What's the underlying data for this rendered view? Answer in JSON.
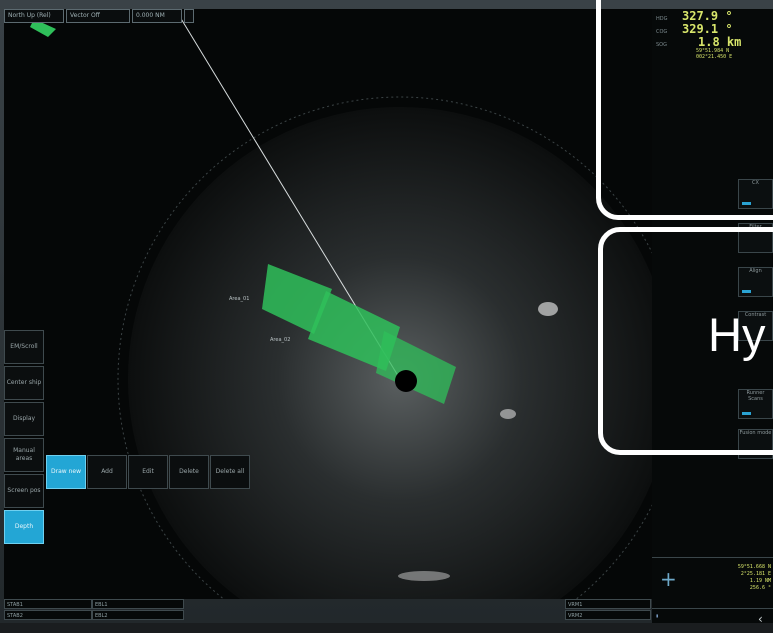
{
  "topbar": {
    "mode": "North Up (Rel)",
    "vector": "Vector Off",
    "range": "0.000 NM"
  },
  "nav": {
    "rows": [
      {
        "label": "HDG",
        "value": "327.9 °"
      },
      {
        "label": "COG",
        "value": "329.1 °"
      },
      {
        "label": "SOG",
        "value": "1.8 km"
      }
    ],
    "lat": "59°51.984 N",
    "lon": "002°21.450 E"
  },
  "left_menu": [
    {
      "label": "EM/Scroll"
    },
    {
      "label": "Center ship"
    },
    {
      "label": "Display"
    },
    {
      "label": "Manual areas"
    },
    {
      "label": "Screen pos"
    },
    {
      "label": "Depth"
    }
  ],
  "submenu": [
    {
      "label": "Draw new"
    },
    {
      "label": "Add"
    },
    {
      "label": "Edit"
    },
    {
      "label": "Delete"
    },
    {
      "label": "Delete all"
    }
  ],
  "status": {
    "row1": [
      "STAB1",
      "EBL1"
    ],
    "row2": [
      "STAB2",
      "EBL2"
    ],
    "vrm1": "VRM1",
    "vrm2": "VRM2"
  },
  "cursor": {
    "lines": [
      "59°51.668 N",
      "2°25.181 E",
      "1.19 NM",
      "256.6 °"
    ]
  },
  "areas": {
    "label1": "Area_01",
    "label2": "Area_02"
  },
  "right_controls": [
    {
      "label": "CX"
    },
    {
      "label": "Filter"
    },
    {
      "label": "Align"
    },
    {
      "label": "Contrast"
    },
    {
      "label": "Runner Scans"
    },
    {
      "label": "Fusion mode"
    }
  ],
  "callout_text": "Hy",
  "colors": {
    "accent": "#23a6d5",
    "area_fill": "#2fbf5a",
    "nav_text": "#d8e66b",
    "callout": "#ffffff"
  }
}
